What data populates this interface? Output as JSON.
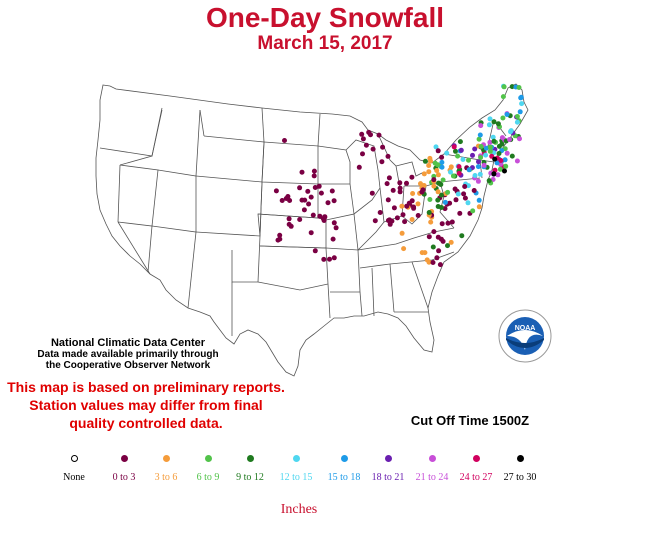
{
  "title": "One-Day Snowfall",
  "date": "March 15, 2017",
  "credit": {
    "line1": "National Climatic Data Center",
    "line2": "Data made available primarily through",
    "line3": "the Cooperative Observer Network"
  },
  "disclaimer": {
    "line1": "This map is based on preliminary reports.",
    "line2": "Station values may differ from final",
    "line3": "quality controlled data."
  },
  "cutoff": "Cut Off Time 1500Z",
  "legend_unit": "Inches",
  "legend": [
    {
      "label": "None",
      "color": "#ffffff",
      "label_color": "#000000"
    },
    {
      "label": "0 to 3",
      "color": "#7a0043",
      "label_color": "#7a0043"
    },
    {
      "label": "3 to 6",
      "color": "#f59c3b",
      "label_color": "#f59c3b"
    },
    {
      "label": "6 to 9",
      "color": "#52c34a",
      "label_color": "#52c34a"
    },
    {
      "label": "9 to 12",
      "color": "#1f7a1f",
      "label_color": "#1f7a1f"
    },
    {
      "label": "12 to 15",
      "color": "#4fd7f0",
      "label_color": "#4fd7f0"
    },
    {
      "label": "15 to 18",
      "color": "#1e9be8",
      "label_color": "#1e9be8"
    },
    {
      "label": "18 to 21",
      "color": "#6a1fb0",
      "label_color": "#6a1fb0"
    },
    {
      "label": "21 to 24",
      "color": "#c84fd8",
      "label_color": "#c84fd8"
    },
    {
      "label": "24 to 27",
      "color": "#d1005e",
      "label_color": "#d1005e"
    },
    {
      "label": "27 to 30",
      "color": "#000000",
      "label_color": "#000000"
    }
  ],
  "logo": {
    "text": "NOAA",
    "ring_text": "NATIONAL OCEANIC AND ATMOSPHERIC ADMINISTRATION · U.S. DEPARTMENT OF COMMERCE"
  }
}
